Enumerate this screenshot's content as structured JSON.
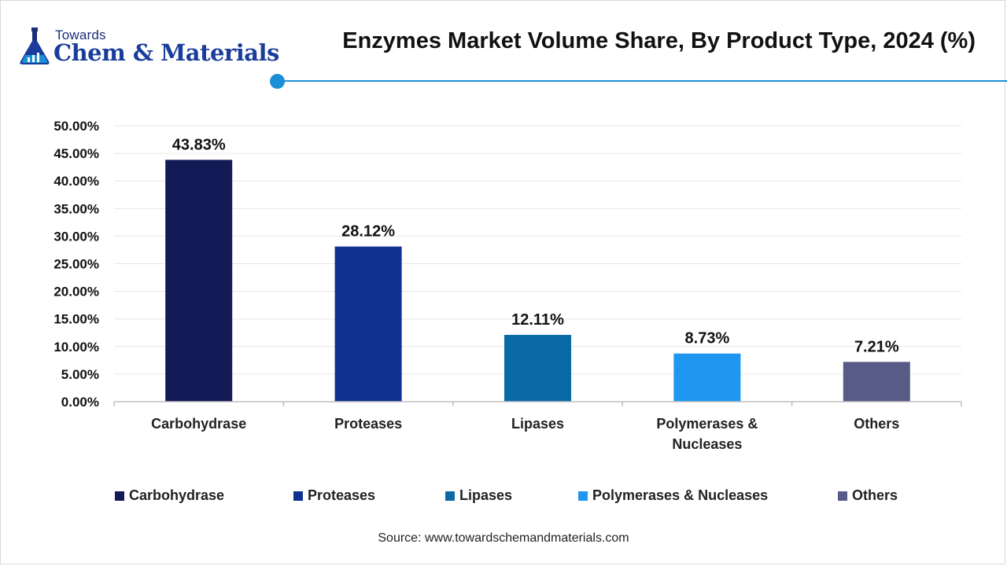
{
  "logo": {
    "top_text": "Towards",
    "main_text": "Chem & Materials"
  },
  "title": "Enzymes Market Volume Share, By Product Type, 2024 (%)",
  "chart_data": {
    "type": "bar",
    "title": "Enzymes Market Volume Share, By Product Type, 2024 (%)",
    "categories": [
      "Carbohydrase",
      "Proteases",
      "Lipases",
      "Polymerases & Nucleases",
      "Others"
    ],
    "category_lines": [
      [
        "Carbohydrase"
      ],
      [
        "Proteases"
      ],
      [
        "Lipases"
      ],
      [
        "Polymerases &",
        "Nucleases"
      ],
      [
        "Others"
      ]
    ],
    "values": [
      43.83,
      28.12,
      12.11,
      8.73,
      7.21
    ],
    "data_labels": [
      "43.83%",
      "28.12%",
      "12.11%",
      "8.73%",
      "7.21%"
    ],
    "colors": [
      "#141a55",
      "#0f3290",
      "#0a6aa6",
      "#1f97f0",
      "#575b85"
    ],
    "ylim": [
      0,
      50
    ],
    "yticks": [
      0,
      5,
      10,
      15,
      20,
      25,
      30,
      35,
      40,
      45,
      50
    ],
    "ytick_labels": [
      "0.00%",
      "5.00%",
      "10.00%",
      "15.00%",
      "20.00%",
      "25.00%",
      "30.00%",
      "35.00%",
      "40.00%",
      "45.00%",
      "50.00%"
    ],
    "xlabel": "",
    "ylabel": "",
    "grid": true,
    "legend_position": "bottom"
  },
  "legend": [
    {
      "label": "Carbohydrase",
      "color": "#141a55"
    },
    {
      "label": "Proteases",
      "color": "#0f3290"
    },
    {
      "label": "Lipases",
      "color": "#0a6aa6"
    },
    {
      "label": "Polymerases & Nucleases",
      "color": "#1f97f0"
    },
    {
      "label": "Others",
      "color": "#575b85"
    }
  ],
  "source": "Source: www.towardschemandmaterials.com",
  "colors": {
    "accent": "#1b8fd6",
    "grid": "#e6e6e6",
    "axis": "#bfbfbf"
  }
}
